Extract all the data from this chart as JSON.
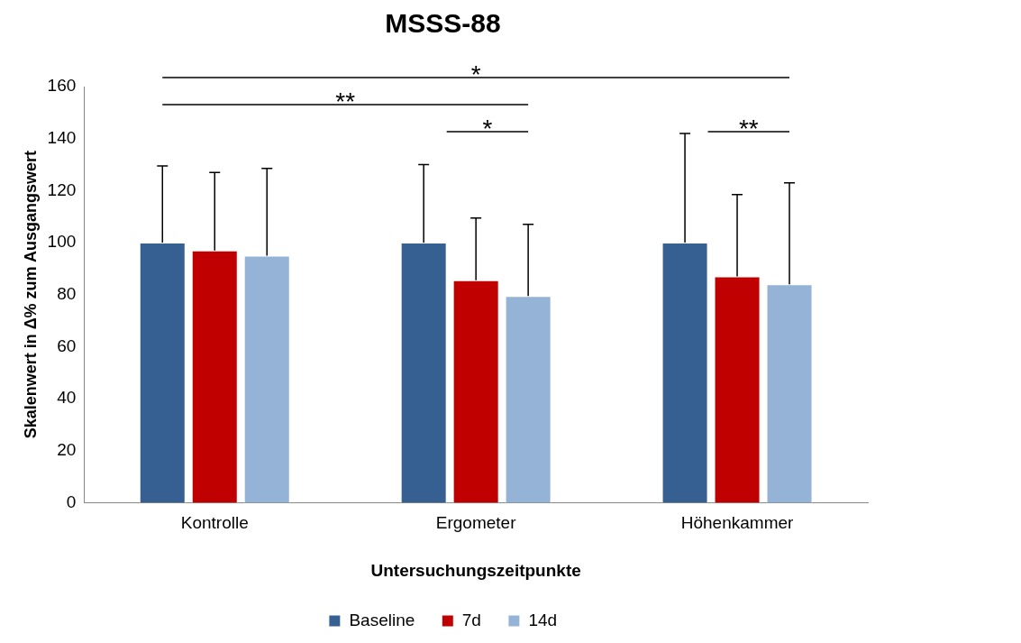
{
  "chart_data": {
    "type": "bar",
    "title": "MSSS-88",
    "xlabel": "Untersuchungszeitpunkte",
    "ylabel": "Skalenwert in Δ% zum Ausgangswert",
    "categories": [
      "Kontrolle",
      "Ergometer",
      "Höhenkammer"
    ],
    "series": [
      {
        "name": "Baseline",
        "color": "#376092",
        "values": [
          100,
          100,
          100
        ],
        "errors": [
          [
            100,
            129.5
          ],
          [
            100,
            130
          ],
          [
            100,
            142
          ]
        ]
      },
      {
        "name": "7d",
        "color": "#c00000",
        "values": [
          97,
          85.5,
          87
        ],
        "errors": [
          [
            97,
            127
          ],
          [
            85.5,
            109.5
          ],
          [
            87,
            118.5
          ]
        ]
      },
      {
        "name": "14d",
        "color": "#95b3d7",
        "values": [
          95,
          79.5,
          84
        ],
        "errors": [
          [
            95,
            128.5
          ],
          [
            79.5,
            107
          ],
          [
            84,
            123
          ]
        ]
      }
    ],
    "ylim": [
      0,
      160
    ],
    "yticks": [
      0,
      20,
      40,
      60,
      80,
      100,
      120,
      140,
      160
    ],
    "grid": false,
    "legend": "bottom",
    "annotations": [
      "*",
      "**",
      "*",
      "**"
    ]
  }
}
